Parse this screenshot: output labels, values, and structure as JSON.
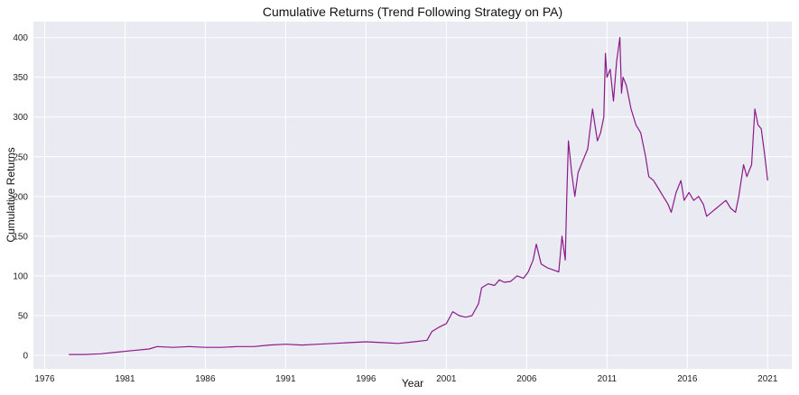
{
  "chart_data": {
    "type": "line",
    "title": "Cumulative Returns (Trend Following Strategy on PA)",
    "xlabel": "Year",
    "ylabel": "Cumulative Returns",
    "xlim": [
      1975.3,
      2022.5
    ],
    "ylim": [
      -17,
      420
    ],
    "xticks": [
      1976,
      1981,
      1986,
      1991,
      1996,
      2001,
      2006,
      2011,
      2016,
      2021
    ],
    "xtick_labels": [
      "1976",
      "1981",
      "1986",
      "1991",
      "1996",
      "2001",
      "2006",
      "2011",
      "2016",
      "2021"
    ],
    "yticks": [
      0,
      50,
      100,
      150,
      200,
      250,
      300,
      350,
      400
    ],
    "ytick_labels": [
      "0",
      "50",
      "100",
      "150",
      "200",
      "250",
      "300",
      "350",
      "400"
    ],
    "grid": true,
    "legend": "none",
    "colors": {
      "line": "#8b1a8b",
      "plot_bg": "#eaeaf2",
      "grid": "#ffffff"
    },
    "series": [
      {
        "x": [
          1977.5,
          1978.5,
          1979.5,
          1980.5,
          1981.5,
          1982.5,
          1983,
          1984,
          1985,
          1986,
          1987,
          1988,
          1989,
          1990,
          1991,
          1992,
          1993,
          1994,
          1995,
          1996,
          1997,
          1998,
          1999,
          1999.8,
          2000.1,
          2000.5,
          2001,
          2001.4,
          2001.8,
          2002.2,
          2002.6,
          2003.0,
          2003.2,
          2003.6,
          2004.0,
          2004.3,
          2004.6,
          2005.0,
          2005.4,
          2005.8,
          2006.1,
          2006.4,
          2006.6,
          2006.9,
          2007.3,
          2007.6,
          2008.0,
          2008.2,
          2008.4,
          2008.5,
          2008.6,
          2008.8,
          2009.0,
          2009.2,
          2009.5,
          2009.8,
          2010.1,
          2010.4,
          2010.6,
          2010.8,
          2010.9,
          2011.0,
          2011.2,
          2011.4,
          2011.6,
          2011.8,
          2011.9,
          2012.0,
          2012.2,
          2012.5,
          2012.8,
          2013.1,
          2013.4,
          2013.6,
          2013.9,
          2014.2,
          2014.5,
          2014.8,
          2015.0,
          2015.3,
          2015.6,
          2015.8,
          2016.1,
          2016.4,
          2016.7,
          2017.0,
          2017.2,
          2017.5,
          2017.8,
          2018.1,
          2018.4,
          2018.7,
          2019.0,
          2019.2,
          2019.5,
          2019.7,
          2020.0,
          2020.2,
          2020.4,
          2020.6,
          2020.8,
          2021.0
        ],
        "y": [
          1,
          1,
          2,
          4,
          6,
          8,
          11,
          10,
          11,
          10,
          10,
          11,
          11,
          13,
          14,
          13,
          14,
          15,
          16,
          17,
          16,
          15,
          17,
          19,
          30,
          35,
          40,
          55,
          50,
          48,
          50,
          65,
          85,
          90,
          88,
          95,
          92,
          93,
          100,
          97,
          105,
          120,
          140,
          115,
          110,
          108,
          105,
          150,
          120,
          200,
          270,
          230,
          200,
          230,
          245,
          260,
          310,
          270,
          280,
          300,
          380,
          350,
          360,
          320,
          370,
          400,
          330,
          350,
          340,
          310,
          290,
          280,
          250,
          225,
          220,
          210,
          200,
          190,
          180,
          205,
          220,
          195,
          205,
          195,
          200,
          190,
          175,
          180,
          185,
          190,
          195,
          185,
          180,
          200,
          240,
          225,
          240,
          310,
          290,
          285,
          255,
          220
        ]
      }
    ]
  }
}
